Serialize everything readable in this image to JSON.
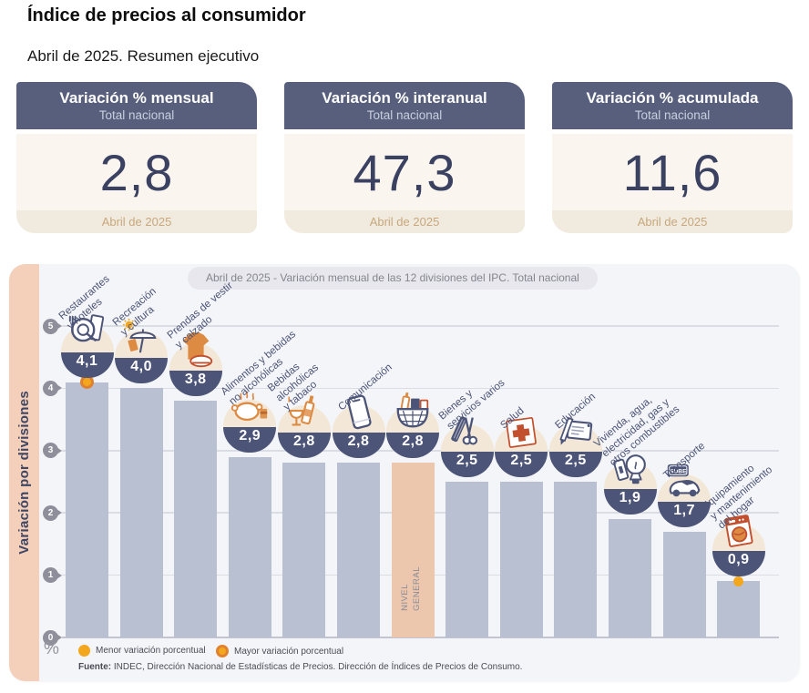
{
  "header": {
    "title": "Índice de precios al consumidor",
    "subtitle": "Abril de 2025. Resumen ejecutivo"
  },
  "cards": [
    {
      "title": "Variación % mensual",
      "scope": "Total nacional",
      "value": "2,8",
      "period": "Abril de 2025"
    },
    {
      "title": "Variación % interanual",
      "scope": "Total nacional",
      "value": "47,3",
      "period": "Abril de 2025"
    },
    {
      "title": "Variación % acumulada",
      "scope": "Total nacional",
      "value": "11,6",
      "period": "Abril de 2025"
    }
  ],
  "chart_data": {
    "type": "bar",
    "title": "Abril de 2025 - Variación mensual de las 12 divisiones del IPC. Total nacional",
    "ylabel": "Variación por divisiones",
    "y_unit": "%",
    "ylim": [
      0,
      5
    ],
    "yticks": [
      0,
      1,
      2,
      3,
      4,
      5
    ],
    "grid": true,
    "legend_position": "bottom",
    "legend": [
      {
        "label": "Menor variación porcentual",
        "marker": "solid-yellow-dot"
      },
      {
        "label": "Mayor variación porcentual",
        "marker": "ringed-yellow-dot"
      }
    ],
    "source": {
      "prefix": "Fuente:",
      "text": " INDEC, Dirección Nacional de Estadísticas de Precios. Dirección de Índices de Precios de Consumo."
    },
    "bars": [
      {
        "label": "Restaurantes\ny hoteles",
        "value": 4.1,
        "display": "4,1",
        "icon": "restaurants-hotels",
        "marker": "mayor"
      },
      {
        "label": "Recreación\ny cultura",
        "value": 4.0,
        "display": "4,0",
        "icon": "recreation-culture"
      },
      {
        "label": "Prendas de vestir\ny calzado",
        "value": 3.8,
        "display": "3,8",
        "icon": "clothing-footwear"
      },
      {
        "label": "Alimentos y bebidas\nno alcohólicas",
        "value": 2.9,
        "display": "2,9",
        "icon": "food-non-alcoholic"
      },
      {
        "label": "Bebidas\nalcohólicas\ny tabaco",
        "value": 2.8,
        "display": "2,8",
        "icon": "alcoholic-tobacco"
      },
      {
        "label": "Comunicación",
        "value": 2.8,
        "display": "2,8",
        "icon": "communication"
      },
      {
        "label": "",
        "value": 2.8,
        "display": "2,8",
        "icon": "general-basket",
        "highlight": true,
        "bar_text": "NIVEL\nGENERAL"
      },
      {
        "label": "Bienes y\nservicios varios",
        "value": 2.5,
        "display": "2,5",
        "icon": "misc-goods-services"
      },
      {
        "label": "Salud",
        "value": 2.5,
        "display": "2,5",
        "icon": "health"
      },
      {
        "label": "Educación",
        "value": 2.5,
        "display": "2,5",
        "icon": "education"
      },
      {
        "label": "Vivienda, agua,\nelectricidad, gas y\notros combustibles",
        "value": 1.9,
        "display": "1,9",
        "icon": "housing-utilities"
      },
      {
        "label": "Transporte",
        "value": 1.7,
        "display": "1,7",
        "icon": "transport"
      },
      {
        "label": "Equipamiento\ny mantenimiento\ndel hogar",
        "value": 0.9,
        "display": "0,9",
        "icon": "home-equipment",
        "marker": "menor"
      }
    ],
    "colors": {
      "bar": "#b9c0d2",
      "highlight_bar": "#ecc7ae",
      "bubble_bg": "#f3e8d7",
      "bubble_bowl": "#4c5477",
      "accent_yellow": "#f2a71e",
      "accent_orange_ring": "#e0812e",
      "icon_orange": "#dd8a42",
      "icon_red": "#c2502f",
      "header_navy": "#575f7d"
    }
  }
}
